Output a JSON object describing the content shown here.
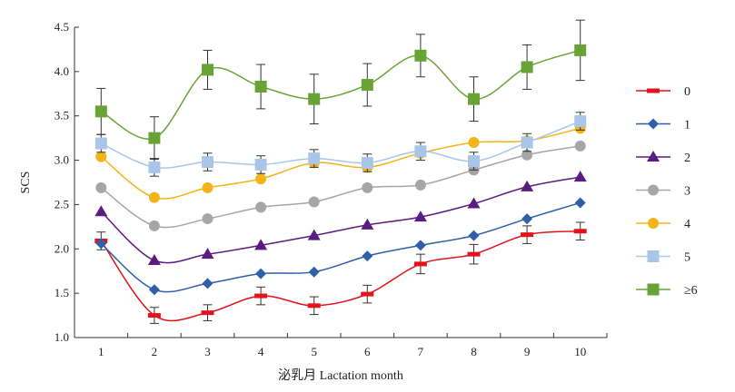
{
  "chart_data": {
    "type": "line",
    "xlabel": "泌乳月 Lactation month",
    "ylabel": "SCS",
    "x": [
      1,
      2,
      3,
      4,
      5,
      6,
      7,
      8,
      9,
      10
    ],
    "x_tick_labels": [
      "1",
      "2",
      "3",
      "4",
      "5",
      "6",
      "7",
      "8",
      "9",
      "10"
    ],
    "ylim": [
      1.0,
      4.5
    ],
    "y_ticks": [
      1.0,
      1.5,
      2.0,
      2.5,
      3.0,
      3.5,
      4.0,
      4.5
    ],
    "y_tick_labels": [
      "1.0",
      "1.5",
      "2.0",
      "2.5",
      "3.0",
      "3.5",
      "4.0",
      "4.5"
    ],
    "grid": false,
    "legend_position": "right",
    "series": [
      {
        "name": "0",
        "color": "#e3121b",
        "marker": "dash",
        "values": [
          2.09,
          1.25,
          1.28,
          1.47,
          1.36,
          1.49,
          1.83,
          1.94,
          2.16,
          2.2
        ],
        "errors": [
          0.1,
          0.09,
          0.09,
          0.1,
          0.1,
          0.1,
          0.11,
          0.11,
          0.1,
          0.1
        ]
      },
      {
        "name": "1",
        "color": "#2f5fa8",
        "marker": "diamond",
        "values": [
          2.06,
          1.54,
          1.61,
          1.72,
          1.74,
          1.92,
          2.04,
          2.15,
          2.34,
          2.52
        ],
        "errors": []
      },
      {
        "name": "2",
        "color": "#5a1c80",
        "marker": "triangle",
        "values": [
          2.42,
          1.87,
          1.94,
          2.04,
          2.15,
          2.27,
          2.36,
          2.51,
          2.7,
          2.81
        ],
        "errors": []
      },
      {
        "name": "3",
        "color": "#a6a6a6",
        "marker": "circle",
        "values": [
          2.69,
          2.26,
          2.34,
          2.47,
          2.53,
          2.69,
          2.72,
          2.89,
          3.06,
          3.16
        ],
        "errors": []
      },
      {
        "name": "4",
        "color": "#f2b417",
        "marker": "circle",
        "values": [
          3.04,
          2.58,
          2.69,
          2.79,
          2.97,
          2.92,
          3.08,
          3.2,
          3.22,
          3.36
        ],
        "errors": []
      },
      {
        "name": "5",
        "color": "#a9c6e8",
        "marker": "square",
        "values": [
          3.19,
          2.92,
          2.98,
          2.95,
          3.02,
          2.97,
          3.1,
          2.99,
          3.2,
          3.44
        ],
        "errors": [
          0.1,
          0.1,
          0.1,
          0.1,
          0.1,
          0.1,
          0.1,
          0.1,
          0.1,
          0.1
        ]
      },
      {
        "name": "≥6",
        "color": "#6aa335",
        "marker": "square",
        "values": [
          3.55,
          3.25,
          4.02,
          3.83,
          3.69,
          3.85,
          4.18,
          3.69,
          4.05,
          4.24
        ],
        "errors": [
          0.26,
          0.24,
          0.22,
          0.25,
          0.28,
          0.24,
          0.24,
          0.25,
          0.25,
          0.34
        ]
      }
    ]
  }
}
